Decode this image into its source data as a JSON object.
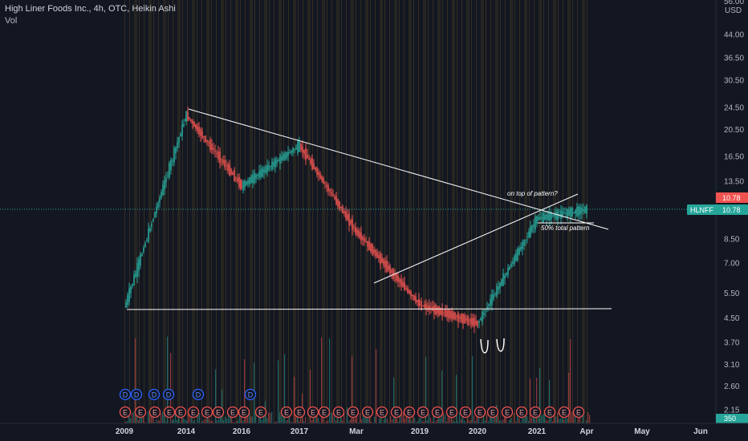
{
  "legend": {
    "title": "High Liner Foods Inc., 4h, OTC, Heikin Ashi",
    "volume_label": "Vol"
  },
  "price_axis": {
    "currency": "USD",
    "top_cut_label": "56.00"
  },
  "badges": {
    "symbol": "HLNFF",
    "price": "10.78",
    "last_price": "10.78",
    "volume": "350"
  },
  "annotations": {
    "top": "on top of pattern?",
    "bottom": "50% total pattern"
  },
  "event_markers": {
    "dividend_letter": "D",
    "earnings_letter": "E"
  },
  "colors": {
    "background": "#131722",
    "up": "#26a69a",
    "down": "#ef5350",
    "drawing": "#ffffff",
    "session_shade": "#5c4a1f",
    "dividend_marker": "#2962ff",
    "earnings_marker": "#ef5350",
    "price_badge": "#ef5350",
    "symbol_badge": "#26a69a"
  },
  "chart_data": {
    "type": "line",
    "style": "heikin-ashi candles with volume",
    "title": "High Liner Foods Inc., 4h, OTC, Heikin Ashi",
    "y_scale": "log",
    "ylim": [
      2.0,
      56.0
    ],
    "y_ticks": [
      "56.00",
      "44.00",
      "36.50",
      "30.50",
      "24.50",
      "20.50",
      "16.50",
      "13.50",
      "10.78",
      "8.50",
      "7.00",
      "5.50",
      "4.50",
      "3.70",
      "3.10",
      "2.60",
      "2.15"
    ],
    "x_ticks": [
      "2009",
      "2014",
      "2016",
      "2017",
      "Mar",
      "2019",
      "2020",
      "2021",
      "Apr",
      "May",
      "Jun"
    ],
    "series": [
      {
        "name": "HLNFF",
        "x": [
          "2009",
          "2014",
          "2016",
          "2017",
          "Mar",
          "2019",
          "2020",
          "2021",
          "Apr"
        ],
        "values": [
          4.9,
          23.0,
          13.0,
          18.0,
          9.0,
          5.0,
          4.3,
          10.0,
          10.78
        ]
      }
    ],
    "last_value": 10.78,
    "drawings": [
      {
        "name": "descending trendline",
        "from": 24.5,
        "to": 9.6
      },
      {
        "name": "ascending trendline",
        "from": 6.1,
        "to": 11.8
      },
      {
        "name": "support line",
        "level": 4.9
      }
    ],
    "grid": false,
    "legend": "top-left"
  }
}
